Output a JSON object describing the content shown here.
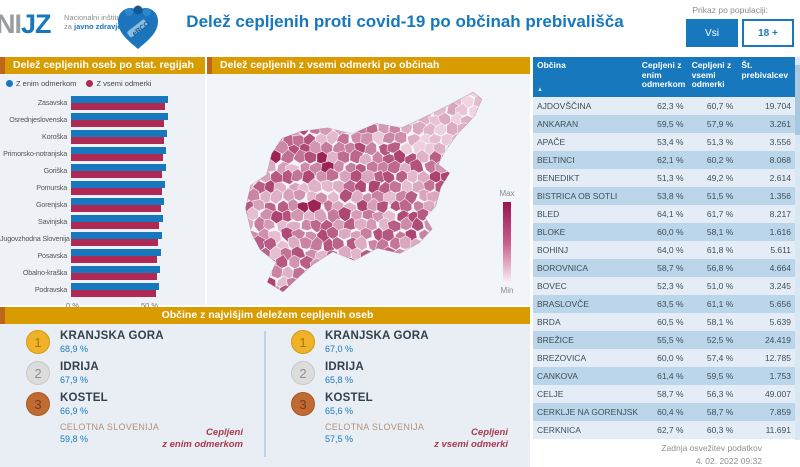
{
  "header": {
    "logo": {
      "nijz_gray": "NI",
      "nijz_blue": "JZ",
      "line1": "Nacionalni inštitut",
      "line2_gray": "za ",
      "line2_blue": "javno zdravje",
      "erco": "eRCO"
    },
    "title": "Delež cepljenih proti covid-19 po občinah prebivališča",
    "population_label": "Prikaz po populaciji:",
    "buttons": [
      {
        "label": "Vsi",
        "active": true
      },
      {
        "label": "18 +",
        "active": false
      }
    ]
  },
  "region_chart": {
    "title": "Delež cepljenih oseb po stat. regijah",
    "type": "bar",
    "legend": [
      {
        "label": "Z enim odmerkom",
        "color": "#1778BE"
      },
      {
        "label": "Z vsemi odmerki",
        "color": "#AE2A55"
      }
    ],
    "x_ticks": [
      "0 %",
      "50 %"
    ],
    "x_max": 65,
    "categories": [
      "Zasavska",
      "Osrednjeslovenska",
      "Koroška",
      "Primorsko-notranjska",
      "Goriška",
      "Pomurska",
      "Gorenjska",
      "Savinjska",
      "Jugovzhodna Slovenija",
      "Posavska",
      "Obalno-kraška",
      "Podravska"
    ],
    "series": [
      {
        "name": "Z enim odmerkom",
        "values": [
          62.1,
          62.0,
          61.4,
          60.5,
          60.3,
          59.9,
          59.4,
          58.4,
          57.7,
          57.1,
          56.6,
          56.2
        ]
      },
      {
        "name": "Z vsemi odmerki",
        "values": [
          59.6,
          59.4,
          59.1,
          58.4,
          58.3,
          57.7,
          57.4,
          56.3,
          55.4,
          55.1,
          54.5,
          54.3
        ]
      }
    ]
  },
  "map_panel": {
    "title": "Delež cepljenih z vsemi odmerki po občinah",
    "legend_max": "Max",
    "legend_min": "Min",
    "color_max": "#9B1450",
    "color_min": "#F8EDF3"
  },
  "top_municipalities": {
    "title": "Občine z najvišjim deležem cepljenih oseb",
    "columns": [
      {
        "ranks": [
          {
            "rank": "1",
            "name": "KRANJSKA GORA",
            "value": "68,9 %"
          },
          {
            "rank": "2",
            "name": "IDRIJA",
            "value": "67,9 %"
          },
          {
            "rank": "3",
            "name": "KOSTEL",
            "value": "66,9 %"
          }
        ],
        "total_label": "CELOTNA SLOVENIJA",
        "total_value": "59,8 %",
        "caption_line1": "Cepljeni",
        "caption_line2": "z enim odmerkom"
      },
      {
        "ranks": [
          {
            "rank": "1",
            "name": "KRANJSKA GORA",
            "value": "67,0 %"
          },
          {
            "rank": "2",
            "name": "IDRIJA",
            "value": "65,8 %"
          },
          {
            "rank": "3",
            "name": "KOSTEL",
            "value": "65,6 %"
          }
        ],
        "total_label": "CELOTNA SLOVENIJA",
        "total_value": "57,5 %",
        "caption_line1": "Cepljeni",
        "caption_line2": "z vsemi odmerki"
      }
    ]
  },
  "table": {
    "headers": [
      "Občina",
      "Cepljeni z enim odmerkom",
      "Cepljeni z vsemi odmerki",
      "Št. prebivalcev"
    ],
    "sort_icon": "▲",
    "rows": [
      [
        "AJDOVŠČINA",
        "62,3 %",
        "60,7 %",
        "19.704"
      ],
      [
        "ANKARAN",
        "59,5 %",
        "57,9 %",
        "3.261"
      ],
      [
        "APAČE",
        "53,4 %",
        "51,3 %",
        "3.556"
      ],
      [
        "BELTINCI",
        "62,1 %",
        "60,2 %",
        "8.068"
      ],
      [
        "BENEDIKT",
        "51,3 %",
        "49,2 %",
        "2.614"
      ],
      [
        "BISTRICA OB SOTLI",
        "53,8 %",
        "51,5 %",
        "1.356"
      ],
      [
        "BLED",
        "64,1 %",
        "61,7 %",
        "8.217"
      ],
      [
        "BLOKE",
        "60,0 %",
        "58,1 %",
        "1.616"
      ],
      [
        "BOHINJ",
        "64,0 %",
        "61,8 %",
        "5.611"
      ],
      [
        "BOROVNICA",
        "58,7 %",
        "56,8 %",
        "4.664"
      ],
      [
        "BOVEC",
        "52,3 %",
        "51,0 %",
        "3.245"
      ],
      [
        "BRASLOVČE",
        "63,5 %",
        "61,1 %",
        "5.656"
      ],
      [
        "BRDA",
        "60,5 %",
        "58,1 %",
        "5.639"
      ],
      [
        "BREŽICE",
        "55,5 %",
        "52,5 %",
        "24.419"
      ],
      [
        "BREZOVICA",
        "60,0 %",
        "57,4 %",
        "12.785"
      ],
      [
        "CANKOVA",
        "61,4 %",
        "59,5 %",
        "1.753"
      ],
      [
        "CELJE",
        "58,7 %",
        "56,3 %",
        "49.007"
      ],
      [
        "CERKLJE NA GORENJSKEM",
        "60,4 %",
        "58,7 %",
        "7.859"
      ],
      [
        "CERKNICA",
        "62,7 %",
        "60,3 %",
        "11.691"
      ]
    ]
  },
  "footer": {
    "line1": "Zadnja osvežitev podatkov",
    "line2": "4. 02. 2022 09:32"
  },
  "colors": {
    "accent_orange": "#D89B00",
    "accent_orange_dark": "#C0661A",
    "brand_blue": "#1778BE",
    "bar_red": "#AE2A55",
    "row_light": "#E4EDF5",
    "row_dark": "#BBD6EA"
  }
}
